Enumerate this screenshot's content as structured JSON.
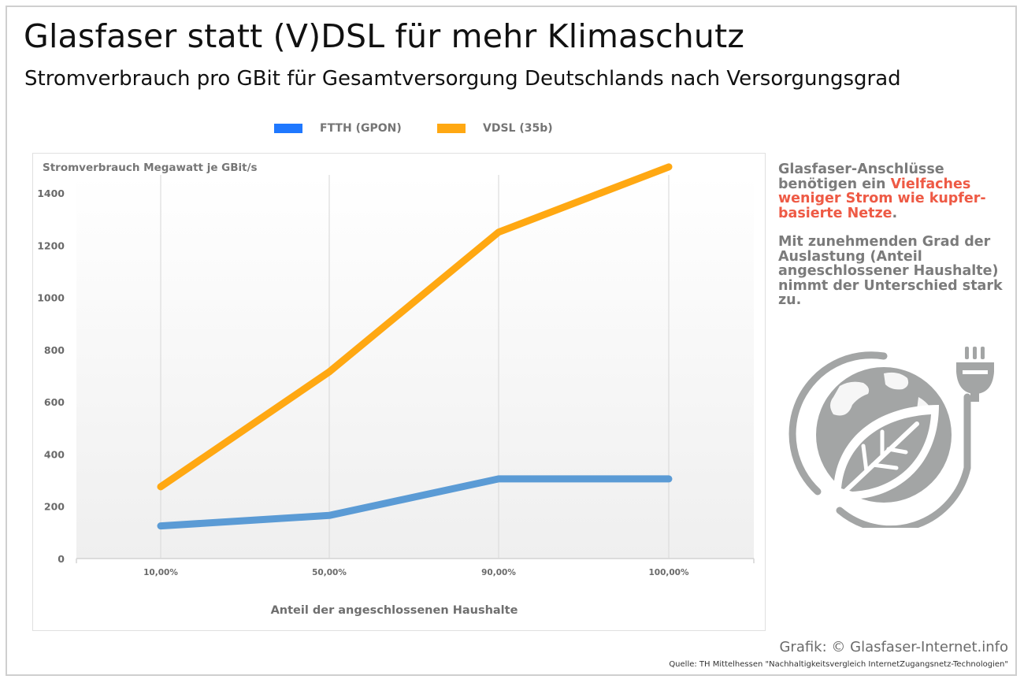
{
  "header": {
    "title": "Glasfaser statt (V)DSL für mehr Klimaschutz",
    "subtitle": "Stromverbrauch pro GBit für Gesamtversorgung Deutschlands nach Versorgungsgrad"
  },
  "chart_data": {
    "type": "line",
    "title": "Glasfaser statt (V)DSL für mehr Klimaschutz",
    "subtitle": "Stromverbrauch pro GBit für Gesamtversorgung Deutschlands nach Versorgungsgrad",
    "xlabel": "Anteil der angeschlossenen Haushalte",
    "ylabel": "Stromverbrauch Megawatt je GBit/s",
    "categories": [
      "10,00%",
      "50,00%",
      "90,00%",
      "100,00%"
    ],
    "ylim": [
      0,
      1400
    ],
    "yticks": [
      "0",
      "200",
      "400",
      "600",
      "800",
      "1000",
      "1200",
      "1400"
    ],
    "ytick_values": [
      0,
      200,
      400,
      600,
      800,
      1000,
      1200,
      1400
    ],
    "grid": "vertical at categories",
    "legend_position": "top-center",
    "series": [
      {
        "name": "FTTH (GPON)",
        "legend_color": "#1f78ff",
        "line_color": "#5b9bd5",
        "values": [
          125,
          165,
          305,
          305
        ]
      },
      {
        "name": "VDSL (35b)",
        "legend_color": "#ffa812",
        "line_color": "#ffa812",
        "values": [
          275,
          715,
          1250,
          1500
        ]
      }
    ]
  },
  "sidebar": {
    "para1_prefix": "Glasfaser-Anschlüsse benötigen ein ",
    "para1_highlight": "Vielfaches weniger Strom wie kupfer-basierte Netze",
    "para1_suffix": ".",
    "para2": "Mit zunehmenden Grad der Auslastung (Anteil angeschlossener Haushalte) nimmt der Unterschied stark zu.",
    "highlight_color": "#ee5a45",
    "icon": "earth-leaf-plug-icon"
  },
  "footer": {
    "credit": "Grafik:  © Glasfaser-Internet.info",
    "source": "Quelle: TH Mittelhessen \"Nachhaltigkeitsvergleich InternetZugangsnetz-Technologien\""
  }
}
